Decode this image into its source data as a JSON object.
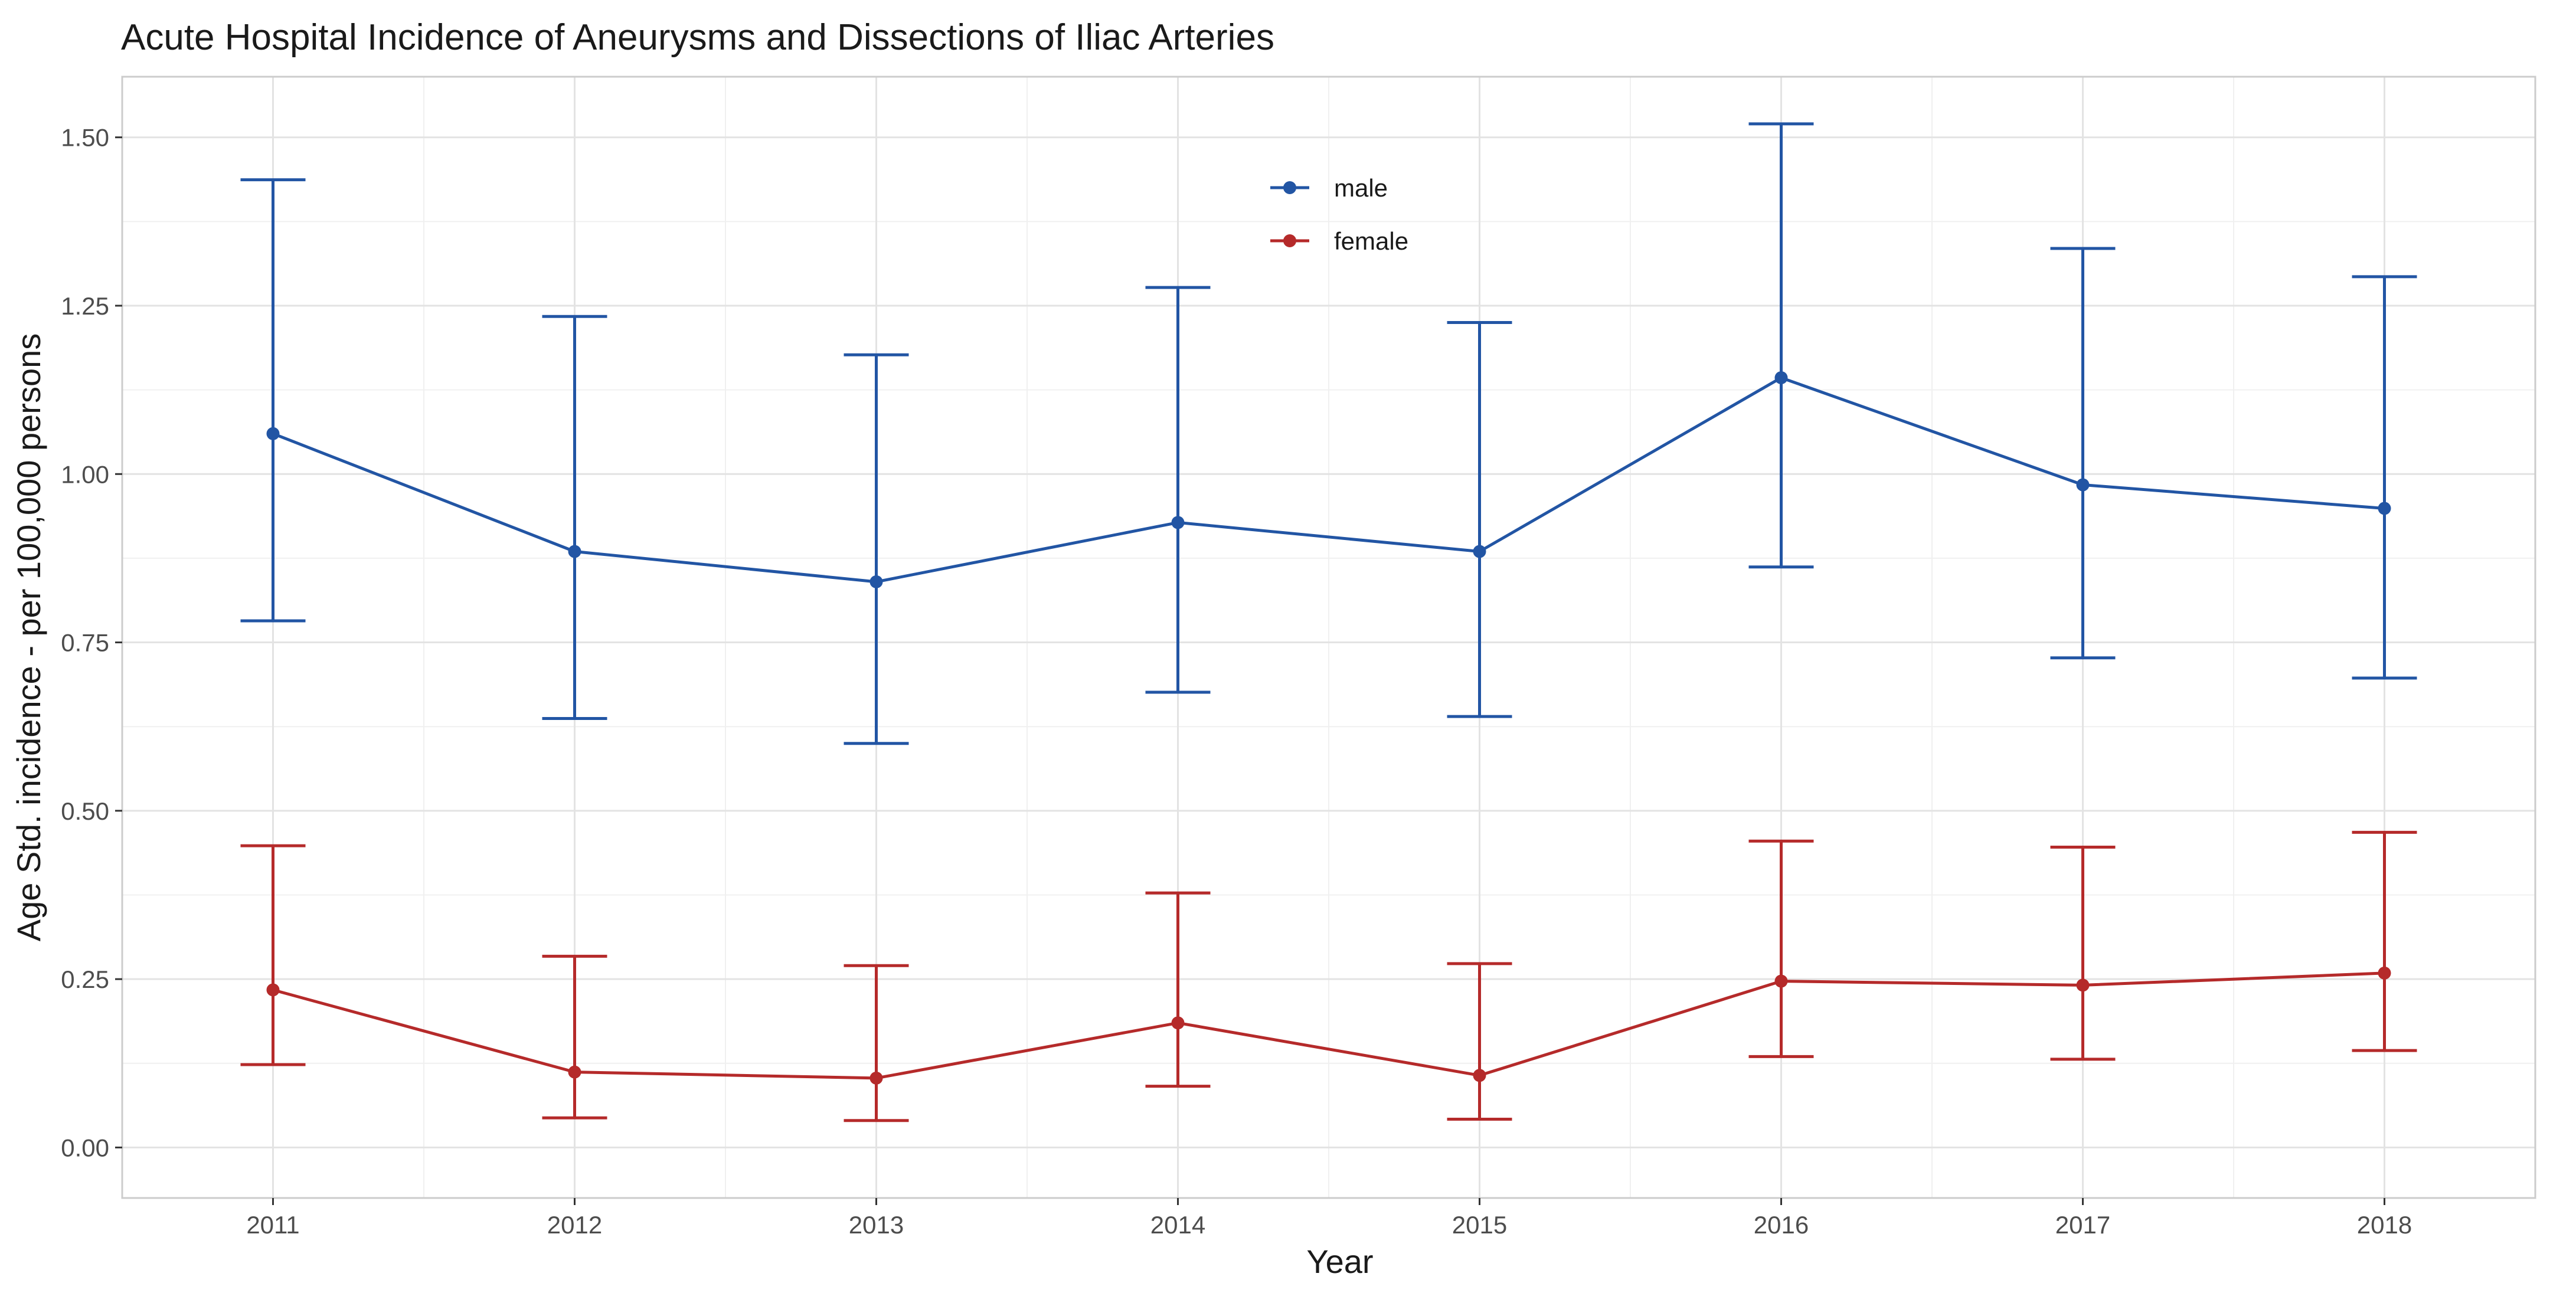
{
  "chart_data": {
    "type": "line",
    "title": "Acute Hospital Incidence of Aneurysms and Dissections of Iliac Arteries",
    "xlabel": "Year",
    "ylabel": "Age Std. incidence - per 100,000 persons",
    "x": [
      "2011",
      "2012",
      "2013",
      "2014",
      "2015",
      "2016",
      "2017",
      "2018"
    ],
    "xlim": [
      2010.5,
      2018.5
    ],
    "ylim": [
      -0.075,
      1.59
    ],
    "yticks": [
      0.0,
      0.25,
      0.5,
      0.75,
      1.0,
      1.25,
      1.5
    ],
    "ytick_labels": [
      "0.00",
      "0.25",
      "0.50",
      "0.75",
      "1.00",
      "1.25",
      "1.50"
    ],
    "grid": true,
    "legend_position": "top-center",
    "error_bars": true,
    "series": [
      {
        "name": "male",
        "color": "#2255a4",
        "values": [
          1.06,
          0.885,
          0.84,
          0.928,
          0.885,
          1.143,
          0.984,
          0.949
        ],
        "lower": [
          0.782,
          0.637,
          0.6,
          0.676,
          0.64,
          0.862,
          0.727,
          0.697
        ],
        "upper": [
          1.437,
          1.234,
          1.177,
          1.277,
          1.225,
          1.52,
          1.335,
          1.293
        ]
      },
      {
        "name": "female",
        "color": "#b52a2a",
        "values": [
          0.234,
          0.112,
          0.103,
          0.185,
          0.107,
          0.247,
          0.241,
          0.259
        ],
        "lower": [
          0.123,
          0.044,
          0.04,
          0.091,
          0.042,
          0.135,
          0.131,
          0.144
        ],
        "upper": [
          0.448,
          0.284,
          0.27,
          0.378,
          0.273,
          0.455,
          0.446,
          0.468
        ]
      }
    ]
  }
}
